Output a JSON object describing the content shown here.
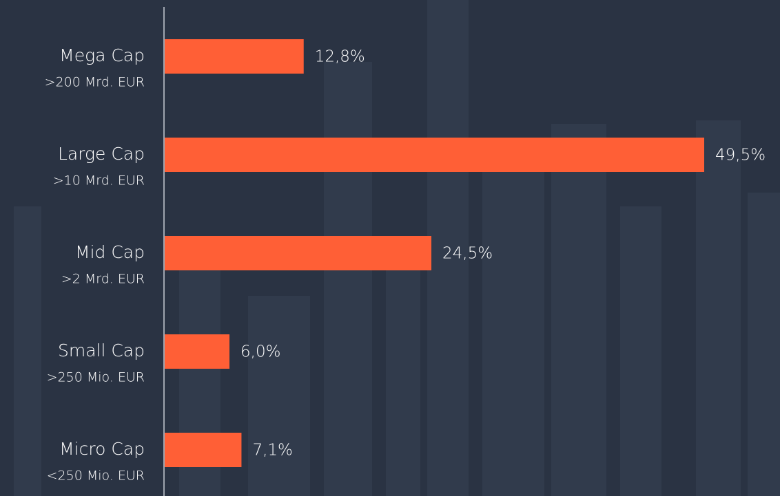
{
  "chart_data": {
    "type": "bar",
    "orientation": "horizontal",
    "categories": [
      "Mega Cap",
      "Large Cap",
      "Mid Cap",
      "Small Cap",
      "Micro Cap"
    ],
    "sublabels": [
      ">200 Mrd. EUR",
      ">10 Mrd. EUR",
      ">2 Mrd. EUR",
      ">250 Mio. EUR",
      "<250 Mio. EUR"
    ],
    "values": [
      12.8,
      49.5,
      24.5,
      6.0,
      7.1
    ],
    "value_labels": [
      "12,8%",
      "49,5%",
      "24,5%",
      "6,0%",
      "7,1%"
    ],
    "color": "#ff5f36"
  }
}
